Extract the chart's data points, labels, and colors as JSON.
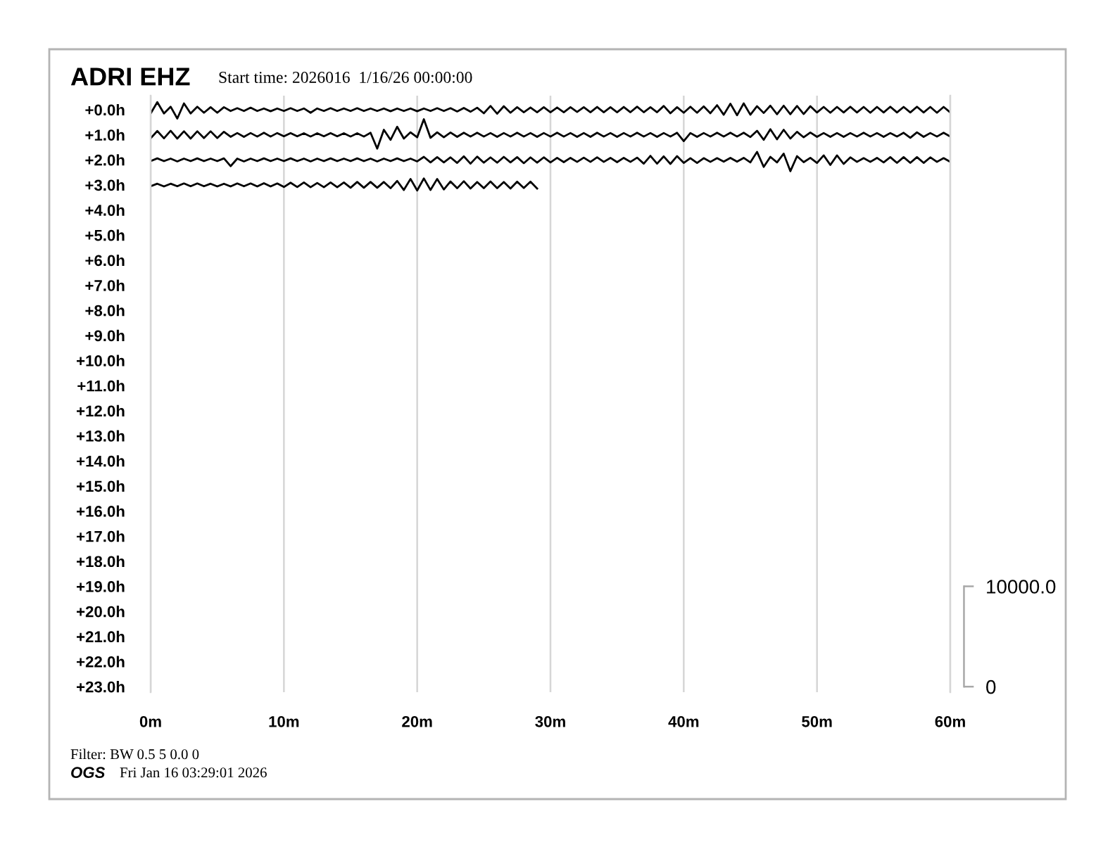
{
  "chart_data": {
    "type": "line",
    "title": "ADRI EHZ",
    "subtitle": "Start time: 2026016  1/16/26 00:00:00",
    "annotations": [
      "Filter: BW 0.5 5 0.0 0",
      "OGS",
      "Fri Jan 16 03:29:01 2026"
    ],
    "x": [
      0,
      0.5,
      1,
      1.5,
      2,
      2.5,
      3,
      3.5,
      4,
      4.5,
      5,
      5.5,
      6,
      6.5,
      7,
      7.5,
      8,
      8.5,
      9,
      9.5,
      10,
      10.5,
      11,
      11.5,
      12,
      12.5,
      13,
      13.5,
      14,
      14.5,
      15,
      15.5,
      16,
      16.5,
      17,
      17.5,
      18,
      18.5,
      19,
      19.5,
      20,
      20.5,
      21,
      21.5,
      22,
      22.5,
      23,
      23.5,
      24,
      24.5,
      25,
      25.5,
      26,
      26.5,
      27,
      27.5,
      28,
      28.5,
      29,
      29.5,
      30,
      30.5,
      31,
      31.5,
      32,
      32.5,
      33,
      33.5,
      34,
      34.5,
      35,
      35.5,
      36,
      36.5,
      37,
      37.5,
      38,
      38.5,
      39,
      39.5,
      40,
      40.5,
      41,
      41.5,
      42,
      42.5,
      43,
      43.5,
      44,
      44.5,
      45,
      45.5,
      46,
      46.5,
      47,
      47.5,
      48,
      48.5,
      49,
      49.5,
      50,
      50.5,
      51,
      51.5,
      52,
      52.5,
      53,
      53.5,
      54,
      54.5,
      55,
      55.5,
      56,
      56.5,
      57,
      57.5,
      58,
      58.5,
      59,
      59.5,
      60
    ],
    "series": [
      {
        "color": "#000000",
        "values": [
          0.15,
          -0.3,
          0.15,
          -0.12,
          0.35,
          -0.25,
          0.15,
          -0.12,
          0.12,
          -0.1,
          0.12,
          -0.1,
          0.05,
          -0.06,
          0.05,
          -0.08,
          0.05,
          -0.05,
          0.06,
          -0.05,
          0.05,
          -0.06,
          0.05,
          -0.05,
          0.12,
          -0.05,
          0.05,
          -0.06,
          0.05,
          -0.05,
          0.05,
          -0.06,
          0.05,
          -0.05,
          0.05,
          -0.05,
          0.06,
          -0.05,
          0.05,
          -0.05,
          0.06,
          -0.05,
          0.05,
          -0.06,
          0.05,
          -0.06,
          0.07,
          -0.07,
          0.08,
          -0.08,
          0.14,
          -0.15,
          0.16,
          -0.14,
          0.12,
          -0.1,
          0.1,
          -0.09,
          0.1,
          -0.1,
          0.1,
          -0.09,
          0.1,
          -0.1,
          0.09,
          -0.1,
          0.1,
          -0.11,
          0.1,
          -0.1,
          0.1,
          -0.11,
          0.1,
          -0.12,
          0.1,
          -0.1,
          0.1,
          -0.15,
          0.14,
          -0.1,
          0.12,
          -0.12,
          0.12,
          -0.13,
          0.14,
          -0.18,
          0.2,
          -0.24,
          0.22,
          -0.25,
          0.2,
          -0.14,
          0.13,
          -0.16,
          0.18,
          -0.16,
          0.18,
          -0.15,
          0.17,
          -0.14,
          0.11,
          -0.11,
          0.12,
          -0.11,
          0.11,
          -0.12,
          0.11,
          -0.11,
          0.12,
          -0.11,
          0.11,
          -0.12,
          0.11,
          -0.11,
          0.11,
          -0.12,
          0.11,
          -0.11,
          0.12,
          -0.11,
          0.11
        ]
      },
      {
        "color": "#000000",
        "values": [
          1.14,
          0.85,
          1.14,
          0.84,
          1.15,
          0.86,
          1.15,
          0.86,
          1.13,
          0.86,
          1.13,
          0.88,
          1.08,
          0.93,
          1.08,
          0.93,
          1.07,
          0.92,
          1.07,
          0.93,
          1.06,
          0.93,
          1.06,
          0.94,
          1.07,
          0.94,
          1.06,
          0.93,
          1.06,
          0.94,
          1.07,
          0.94,
          1.07,
          0.92,
          1.55,
          0.8,
          1.2,
          0.68,
          1.15,
          0.9,
          1.1,
          0.38,
          1.12,
          0.9,
          1.1,
          0.91,
          1.08,
          0.92,
          1.07,
          0.92,
          1.07,
          0.93,
          1.08,
          0.93,
          1.07,
          0.92,
          1.07,
          0.93,
          1.08,
          0.93,
          1.07,
          0.92,
          1.07,
          0.93,
          1.08,
          0.93,
          1.08,
          0.92,
          1.07,
          0.93,
          1.08,
          0.93,
          1.07,
          0.92,
          1.07,
          0.93,
          1.08,
          0.93,
          1.07,
          0.92,
          1.25,
          0.93,
          1.08,
          0.93,
          1.07,
          0.92,
          1.07,
          0.92,
          1.07,
          0.92,
          1.09,
          0.84,
          1.2,
          0.78,
          1.18,
          0.8,
          1.15,
          0.88,
          1.1,
          0.91,
          1.08,
          0.93,
          1.08,
          0.93,
          1.08,
          0.93,
          1.07,
          0.92,
          1.07,
          0.93,
          1.08,
          0.93,
          1.07,
          0.92,
          1.12,
          0.9,
          1.08,
          0.93,
          1.07,
          0.92,
          1.07
        ]
      },
      {
        "color": "#000000",
        "values": [
          2.05,
          1.94,
          2.05,
          1.95,
          2.06,
          1.95,
          2.05,
          1.94,
          2.05,
          1.95,
          2.05,
          1.94,
          2.25,
          1.95,
          2.06,
          1.95,
          2.05,
          1.94,
          2.05,
          1.95,
          2.05,
          1.94,
          2.05,
          1.95,
          2.06,
          1.95,
          2.05,
          1.94,
          2.05,
          1.95,
          2.05,
          1.94,
          2.05,
          1.95,
          2.06,
          1.95,
          2.05,
          1.94,
          2.05,
          1.95,
          2.06,
          1.88,
          2.1,
          1.89,
          2.1,
          1.9,
          2.12,
          1.86,
          2.15,
          1.87,
          2.11,
          1.9,
          2.11,
          1.88,
          2.1,
          1.89,
          2.13,
          1.9,
          2.11,
          1.9,
          2.1,
          1.92,
          2.09,
          1.92,
          2.08,
          1.91,
          2.08,
          1.9,
          2.08,
          1.92,
          2.09,
          1.92,
          2.08,
          1.91,
          2.15,
          1.84,
          2.15,
          1.86,
          2.16,
          1.85,
          2.12,
          1.93,
          2.12,
          1.93,
          2.08,
          1.93,
          2.07,
          1.92,
          2.07,
          1.92,
          2.1,
          1.68,
          2.28,
          1.88,
          2.1,
          1.75,
          2.45,
          1.85,
          2.09,
          1.92,
          2.12,
          1.82,
          2.2,
          1.82,
          2.16,
          1.9,
          2.08,
          1.93,
          2.08,
          1.92,
          2.1,
          1.89,
          2.12,
          1.89,
          2.12,
          1.89,
          2.12,
          1.9,
          2.08,
          1.93,
          2.08
        ]
      },
      {
        "color": "#000000",
        "x": [
          0,
          0.5,
          1,
          1.5,
          2,
          2.5,
          3,
          3.5,
          4,
          4.5,
          5,
          5.5,
          6,
          6.5,
          7,
          7.5,
          8,
          8.5,
          9,
          9.5,
          10,
          10.5,
          11,
          11.5,
          12,
          12.5,
          13,
          13.5,
          14,
          14.5,
          15,
          15.5,
          16,
          16.5,
          17,
          17.5,
          18,
          18.5,
          19,
          19.5,
          20,
          20.5,
          21,
          21.5,
          22,
          22.5,
          23,
          23.5,
          24,
          24.5,
          25,
          25.5,
          26,
          26.5,
          27,
          27.5,
          28,
          28.5,
          29
        ],
        "values": [
          3.05,
          2.95,
          3.06,
          2.95,
          3.05,
          2.94,
          3.05,
          2.94,
          3.05,
          2.95,
          3.06,
          2.95,
          3.06,
          2.94,
          3.05,
          2.94,
          3.06,
          2.93,
          3.06,
          2.94,
          3.08,
          2.91,
          3.08,
          2.9,
          3.09,
          2.92,
          3.09,
          2.9,
          3.09,
          2.9,
          3.11,
          2.88,
          3.11,
          2.88,
          3.11,
          2.88,
          3.13,
          2.84,
          3.2,
          2.76,
          3.22,
          2.74,
          3.2,
          2.76,
          3.18,
          2.86,
          3.13,
          2.85,
          3.14,
          2.88,
          3.13,
          2.86,
          3.13,
          2.88,
          3.14,
          2.87,
          3.12,
          2.87,
          3.14
        ]
      }
    ],
    "xlim": [
      0,
      60
    ],
    "xticks": [
      {
        "value": 0,
        "label": "0m"
      },
      {
        "value": 10,
        "label": "10m"
      },
      {
        "value": 20,
        "label": "20m"
      },
      {
        "value": 30,
        "label": "30m"
      },
      {
        "value": 40,
        "label": "40m"
      },
      {
        "value": 50,
        "label": "50m"
      },
      {
        "value": 60,
        "label": "60m"
      }
    ],
    "ylim": [
      23.22,
      -0.56
    ],
    "yticks": [
      {
        "value": 0,
        "label": "+0.0h"
      },
      {
        "value": 1,
        "label": "+1.0h"
      },
      {
        "value": 2,
        "label": "+2.0h"
      },
      {
        "value": 3,
        "label": "+3.0h"
      },
      {
        "value": 4,
        "label": "+4.0h"
      },
      {
        "value": 5,
        "label": "+5.0h"
      },
      {
        "value": 6,
        "label": "+6.0h"
      },
      {
        "value": 7,
        "label": "+7.0h"
      },
      {
        "value": 8,
        "label": "+8.0h"
      },
      {
        "value": 9,
        "label": "+9.0h"
      },
      {
        "value": 10,
        "label": "+10.0h"
      },
      {
        "value": 11,
        "label": "+11.0h"
      },
      {
        "value": 12,
        "label": "+12.0h"
      },
      {
        "value": 13,
        "label": "+13.0h"
      },
      {
        "value": 14,
        "label": "+14.0h"
      },
      {
        "value": 15,
        "label": "+15.0h"
      },
      {
        "value": 16,
        "label": "+16.0h"
      },
      {
        "value": 17,
        "label": "+17.0h"
      },
      {
        "value": 18,
        "label": "+18.0h"
      },
      {
        "value": 19,
        "label": "+19.0h"
      },
      {
        "value": 20,
        "label": "+20.0h"
      },
      {
        "value": 21,
        "label": "+21.0h"
      },
      {
        "value": 22,
        "label": "+22.0h"
      },
      {
        "value": 23,
        "label": "+23.0h"
      }
    ],
    "y2lim": [
      -550,
      58900
    ],
    "y2ticks": [
      0,
      {
        "value": 10000,
        "label": "10000.0"
      }
    ],
    "grid": "x"
  }
}
